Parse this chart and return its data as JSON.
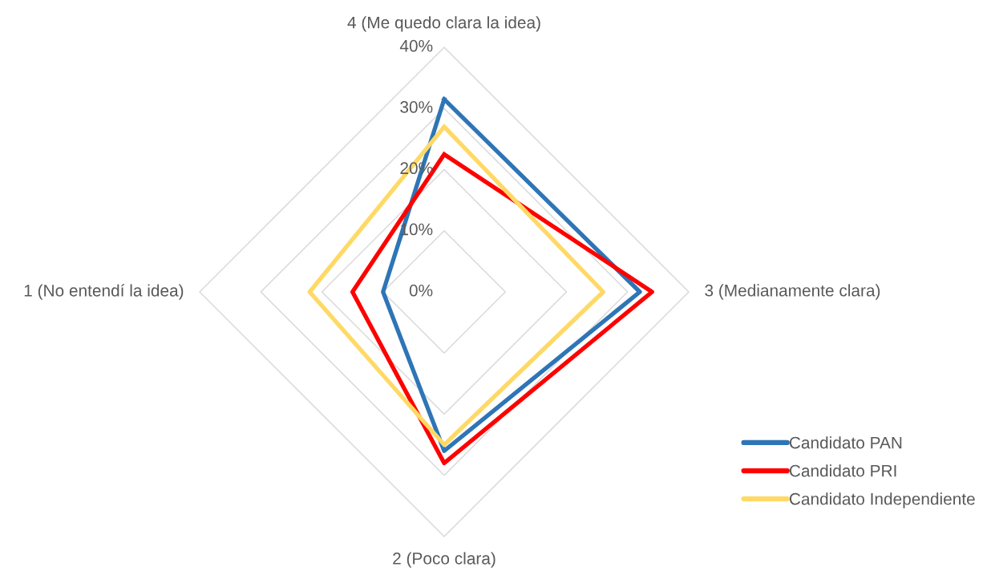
{
  "chart_data": {
    "type": "radar",
    "categories": [
      "4 (Me quedo clara la idea)",
      "3 (Medianamente clara)",
      "2 (Poco clara)",
      "1 (No entendí la idea)"
    ],
    "series": [
      {
        "name": "Candidato PAN",
        "color": "#2e75b6",
        "values": [
          31.5,
          32,
          26,
          10
        ]
      },
      {
        "name": "Candidato PRI",
        "color": "#ff0000",
        "values": [
          22.5,
          34,
          28,
          15
        ]
      },
      {
        "name": "Candidato Independiente",
        "color": "#ffd966",
        "values": [
          27,
          26,
          25,
          22
        ]
      }
    ],
    "ylim": [
      0,
      40
    ],
    "yticks": [
      {
        "value": 0,
        "label": "0%"
      },
      {
        "value": 10,
        "label": "10%"
      },
      {
        "value": 20,
        "label": "20%"
      },
      {
        "value": 30,
        "label": "30%"
      },
      {
        "value": 40,
        "label": "40%"
      }
    ],
    "grid": true,
    "legend": "bottom right"
  }
}
